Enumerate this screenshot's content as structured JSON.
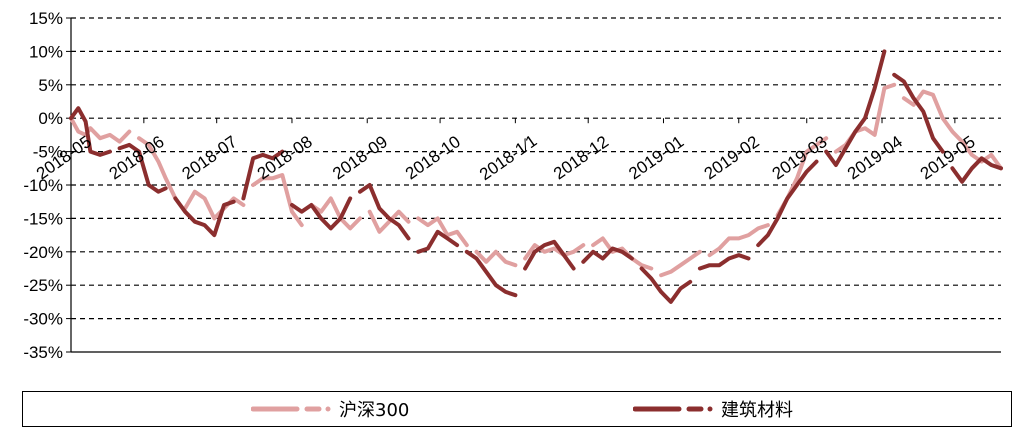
{
  "chart_data": {
    "type": "line",
    "title": "",
    "xlabel": "",
    "ylabel": "",
    "ylim": [
      -35,
      15
    ],
    "yticks": [
      "15%",
      "10%",
      "5%",
      "0%",
      "-5%",
      "-10%",
      "-15%",
      "-20%",
      "-25%",
      "-30%",
      "-35%"
    ],
    "ytick_values": [
      15,
      10,
      5,
      0,
      -5,
      -10,
      -15,
      -20,
      -25,
      -30,
      -35
    ],
    "xlim": [
      "2018-05-02",
      "2019-05-20"
    ],
    "xticks": [
      "2018-05",
      "2018-06",
      "2018-07",
      "2018-08",
      "2018-09",
      "2018-10",
      "2018-11",
      "2018-12",
      "2019-01",
      "2019-02",
      "2019-03",
      "2019-04",
      "2019-05"
    ],
    "xtick_dates": [
      "2018-05-02",
      "2018-06-01",
      "2018-07-01",
      "2018-08-01",
      "2018-09-01",
      "2018-10-01",
      "2018-11-01",
      "2018-12-01",
      "2019-01-01",
      "2019-02-01",
      "2019-03-01",
      "2019-04-01",
      "2019-05-01"
    ],
    "xtick_texts": [
      "2018-05",
      "2018-06",
      "2018-07",
      "2018-08",
      "2018-09",
      "2018-10",
      "2018-1⁄1",
      "2018-12",
      "2019-01",
      "2019-02",
      "2019-03",
      "2019-04",
      "2019-05"
    ],
    "grid": "horizontal-dashed",
    "legend_position": "bottom",
    "series": [
      {
        "name": "沪深300",
        "color": "#e0a0a0",
        "x": [
          "2018-05-02",
          "2018-05-05",
          "2018-05-08",
          "2018-05-10",
          "2018-05-14",
          "2018-05-18",
          "2018-05-22",
          "2018-05-26",
          "2018-05-30",
          "2018-06-03",
          "2018-06-07",
          "2018-06-10",
          "2018-06-14",
          "2018-06-18",
          "2018-06-22",
          "2018-06-26",
          "2018-06-30",
          "2018-07-04",
          "2018-07-08",
          "2018-07-12",
          "2018-07-16",
          "2018-07-20",
          "2018-07-24",
          "2018-07-28",
          "2018-08-01",
          "2018-08-05",
          "2018-08-09",
          "2018-08-13",
          "2018-08-17",
          "2018-08-21",
          "2018-08-25",
          "2018-08-29",
          "2018-09-02",
          "2018-09-06",
          "2018-09-10",
          "2018-09-14",
          "2018-09-18",
          "2018-09-22",
          "2018-09-26",
          "2018-09-30",
          "2018-10-04",
          "2018-10-08",
          "2018-10-12",
          "2018-10-16",
          "2018-10-20",
          "2018-10-24",
          "2018-10-28",
          "2018-11-01",
          "2018-11-05",
          "2018-11-09",
          "2018-11-13",
          "2018-11-17",
          "2018-11-21",
          "2018-11-25",
          "2018-11-29",
          "2018-12-03",
          "2018-12-07",
          "2018-12-11",
          "2018-12-15",
          "2018-12-19",
          "2018-12-23",
          "2018-12-27",
          "2018-12-31",
          "2019-01-04",
          "2019-01-08",
          "2019-01-12",
          "2019-01-16",
          "2019-01-20",
          "2019-01-24",
          "2019-01-28",
          "2019-02-01",
          "2019-02-05",
          "2019-02-09",
          "2019-02-13",
          "2019-02-17",
          "2019-02-21",
          "2019-02-25",
          "2019-03-01",
          "2019-03-05",
          "2019-03-09",
          "2019-03-13",
          "2019-03-17",
          "2019-03-21",
          "2019-03-25",
          "2019-03-29",
          "2019-04-02",
          "2019-04-06",
          "2019-04-10",
          "2019-04-14",
          "2019-04-18",
          "2019-04-22",
          "2019-04-26",
          "2019-04-30",
          "2019-05-04",
          "2019-05-08",
          "2019-05-12",
          "2019-05-16",
          "2019-05-20"
        ],
        "values": [
          0,
          -2,
          -2.5,
          -1.5,
          -3,
          -2.5,
          -3.5,
          -2,
          -3,
          -4,
          -6.5,
          -9,
          -12,
          -13.5,
          -11,
          -12,
          -15,
          -13.5,
          -12,
          -13,
          -10,
          -9,
          -9,
          -8.5,
          -14,
          -16,
          -13,
          -14,
          -12,
          -15,
          -16.5,
          -15,
          -14,
          -17,
          -15.5,
          -14,
          -15.5,
          -15,
          -16,
          -15,
          -17.5,
          -17,
          -19,
          -20,
          -21.5,
          -20,
          -21.5,
          -22,
          -21,
          -19,
          -20,
          -19.5,
          -20.5,
          -20,
          -19,
          -19,
          -18,
          -20,
          -19.5,
          -21,
          -22,
          -22.5,
          -23.5,
          -23,
          -22,
          -21,
          -20,
          -20.5,
          -19.5,
          -18,
          -18,
          -17.5,
          -16.5,
          -16,
          -14.5,
          -12,
          -9,
          -5,
          -4,
          -3,
          -5,
          -4,
          -2,
          -1.5,
          -2.5,
          4.5,
          5,
          3,
          2,
          4,
          3.5,
          0,
          -2,
          -3.5,
          -5.5,
          -6.5,
          -5.5,
          -7.5
        ],
        "segments": [
          [
            0,
            7
          ],
          [
            8,
            12
          ],
          [
            13,
            19
          ],
          [
            20,
            25
          ],
          [
            26,
            31
          ],
          [
            32,
            36
          ],
          [
            37,
            42
          ],
          [
            43,
            47
          ],
          [
            48,
            54
          ],
          [
            55,
            61
          ],
          [
            62,
            66
          ],
          [
            67,
            73
          ],
          [
            74,
            79
          ],
          [
            80,
            86
          ],
          [
            87,
            97
          ]
        ]
      },
      {
        "name": "建筑材料",
        "color": "#8b2e2e",
        "x": [
          "2018-05-02",
          "2018-05-05",
          "2018-05-08",
          "2018-05-10",
          "2018-05-14",
          "2018-05-18",
          "2018-05-22",
          "2018-05-26",
          "2018-05-30",
          "2018-06-03",
          "2018-06-07",
          "2018-06-10",
          "2018-06-14",
          "2018-06-18",
          "2018-06-22",
          "2018-06-26",
          "2018-06-30",
          "2018-07-04",
          "2018-07-08",
          "2018-07-12",
          "2018-07-16",
          "2018-07-20",
          "2018-07-24",
          "2018-07-28",
          "2018-08-01",
          "2018-08-05",
          "2018-08-09",
          "2018-08-13",
          "2018-08-17",
          "2018-08-21",
          "2018-08-25",
          "2018-08-29",
          "2018-09-02",
          "2018-09-06",
          "2018-09-10",
          "2018-09-14",
          "2018-09-18",
          "2018-09-22",
          "2018-09-26",
          "2018-09-30",
          "2018-10-04",
          "2018-10-08",
          "2018-10-12",
          "2018-10-16",
          "2018-10-20",
          "2018-10-24",
          "2018-10-28",
          "2018-11-01",
          "2018-11-05",
          "2018-11-09",
          "2018-11-13",
          "2018-11-17",
          "2018-11-21",
          "2018-11-25",
          "2018-11-29",
          "2018-12-03",
          "2018-12-07",
          "2018-12-11",
          "2018-12-15",
          "2018-12-19",
          "2018-12-23",
          "2018-12-27",
          "2018-12-31",
          "2019-01-04",
          "2019-01-08",
          "2019-01-12",
          "2019-01-16",
          "2019-01-20",
          "2019-01-24",
          "2019-01-28",
          "2019-02-01",
          "2019-02-05",
          "2019-02-09",
          "2019-02-13",
          "2019-02-17",
          "2019-02-21",
          "2019-02-25",
          "2019-03-01",
          "2019-03-05",
          "2019-03-09",
          "2019-03-13",
          "2019-03-17",
          "2019-03-21",
          "2019-03-25",
          "2019-03-29",
          "2019-04-02",
          "2019-04-06",
          "2019-04-10",
          "2019-04-14",
          "2019-04-18",
          "2019-04-22",
          "2019-04-26",
          "2019-04-30",
          "2019-05-04",
          "2019-05-08",
          "2019-05-12",
          "2019-05-16",
          "2019-05-20"
        ],
        "values": [
          0,
          1.5,
          -0.5,
          -5,
          -5.5,
          -5,
          -4.5,
          -4,
          -5,
          -10,
          -11,
          -10.5,
          -12,
          -14,
          -15.5,
          -16,
          -17.5,
          -13,
          -12.5,
          -12,
          -6,
          -5.5,
          -6,
          -5,
          -13,
          -14,
          -13,
          -15,
          -16.5,
          -15,
          -12,
          -11,
          -10,
          -13.5,
          -15,
          -16,
          -18,
          -20,
          -19.5,
          -17,
          -18,
          -19,
          -20,
          -21,
          -23,
          -25,
          -26,
          -26.5,
          -22.5,
          -20,
          -19,
          -18.5,
          -20.5,
          -22.5,
          -21.5,
          -20,
          -21,
          -19.5,
          -20,
          -21,
          -22.5,
          -24,
          -26,
          -27.5,
          -25.5,
          -24.5,
          -22.5,
          -22,
          -22,
          -21,
          -20.5,
          -21,
          -19,
          -17.5,
          -15,
          -12,
          -10,
          -8,
          -6.5,
          -5,
          -7,
          -4.5,
          -2,
          0,
          4.5,
          10,
          6.5,
          5.5,
          3,
          1,
          -3,
          -5,
          -7.5,
          -9.5,
          -7.5,
          -6,
          -7,
          -7.5
        ],
        "segments": [
          [
            0,
            5
          ],
          [
            6,
            11
          ],
          [
            12,
            18
          ],
          [
            19,
            23
          ],
          [
            24,
            30
          ],
          [
            31,
            36
          ],
          [
            37,
            41
          ],
          [
            42,
            47
          ],
          [
            48,
            53
          ],
          [
            54,
            59
          ],
          [
            60,
            65
          ],
          [
            66,
            71
          ],
          [
            72,
            78
          ],
          [
            79,
            85
          ],
          [
            86,
            91
          ],
          [
            92,
            97
          ]
        ]
      }
    ]
  },
  "legend": {
    "items": [
      {
        "label": "沪深300",
        "color": "#e0a0a0"
      },
      {
        "label": "建筑材料",
        "color": "#8b2e2e"
      }
    ]
  }
}
